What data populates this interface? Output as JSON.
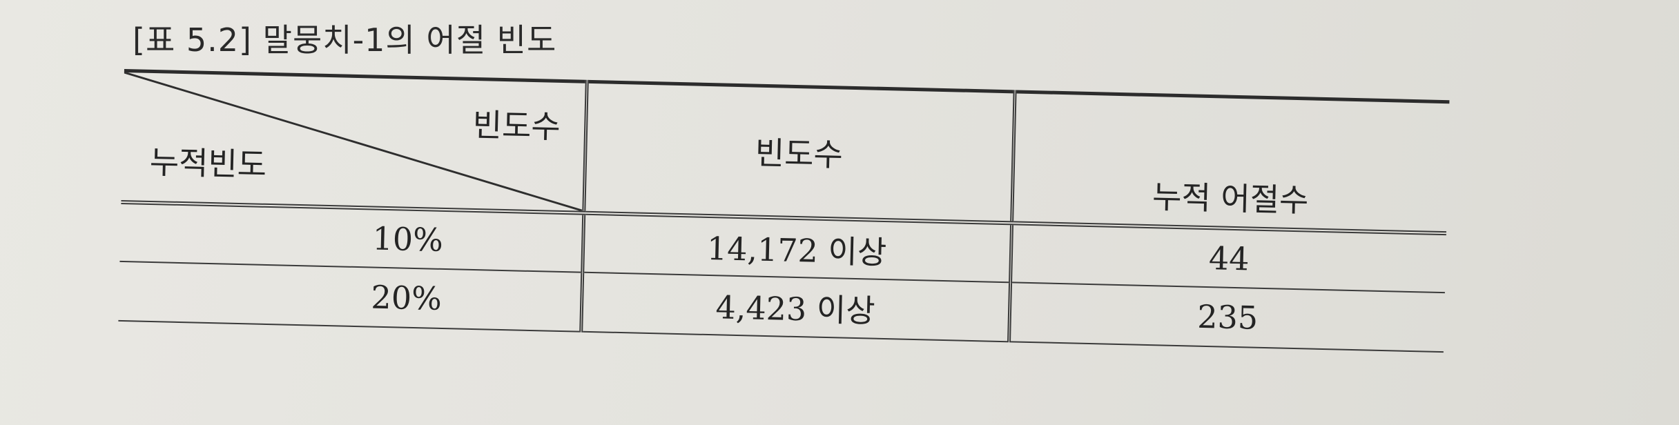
{
  "caption": {
    "label": "[표 5.2]",
    "title": "말뭉치-1의 어절 빈도"
  },
  "table": {
    "header": {
      "diagonal_top": "빈도수",
      "diagonal_bottom": "누적빈도",
      "col2": "빈도수",
      "col3": "누적 어절수"
    },
    "rows": [
      {
        "cumulative": "10%",
        "frequency_num": "14,172",
        "frequency_suffix": "이상",
        "cumulative_words": "44"
      },
      {
        "cumulative": "20%",
        "frequency_num": "4,423",
        "frequency_suffix": "이상",
        "cumulative_words": "235"
      }
    ]
  }
}
